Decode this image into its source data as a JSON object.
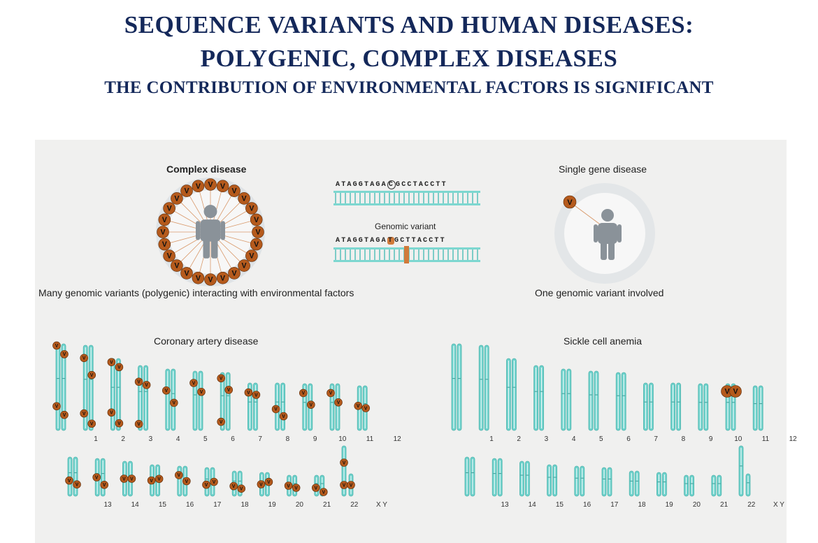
{
  "title_line1": "SEQUENCE VARIANTS AND HUMAN DISEASES:",
  "title_line2": "POLYGENIC, COMPLEX DISEASES",
  "title_line3": "THE CONTRIBUTION OF ENVIRONMENTAL FACTORS IS SIGNIFICANT",
  "diagram": {
    "complex_label": "Complex disease",
    "complex_caption": "Many genomic variants (polygenic) interacting with environmental factors",
    "single_label": "Single gene disease",
    "single_caption": "One genomic variant involved",
    "seq_top_left": "ATAGGTAGA",
    "seq_top_mark": "C",
    "seq_top_right": "GCCTACCTT",
    "genomic_variant_label": "Genomic variant",
    "seq_bottom_left": "ATAGGTAGA",
    "seq_bottom_mark": "T",
    "seq_bottom_right": "GCTTACCTT",
    "variant_letter": "V",
    "karyotype_left_title": "Coronary artery disease",
    "karyotype_right_title": "Sickle cell anemia",
    "chromosome_numbers_row1": [
      "1",
      "2",
      "3",
      "4",
      "5",
      "6",
      "7",
      "8",
      "9",
      "10",
      "11",
      "12"
    ],
    "chromosome_numbers_row2": [
      "13",
      "14",
      "15",
      "16",
      "17",
      "18",
      "19",
      "20",
      "21",
      "22",
      "X Y"
    ]
  },
  "colors": {
    "title": "#14285a",
    "chromosome": "#6fd2cc",
    "variant": "#b55a1c",
    "panel": "#f0f0ef"
  }
}
